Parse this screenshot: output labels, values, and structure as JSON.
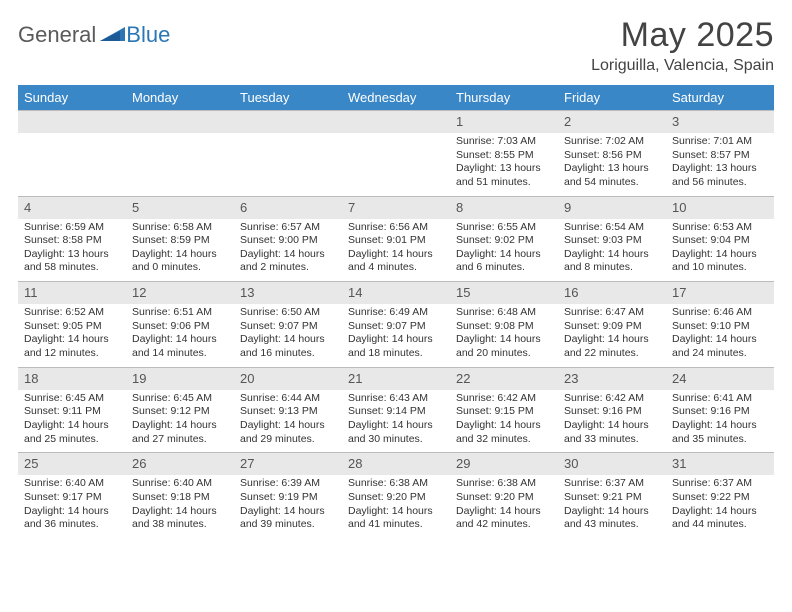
{
  "logo": {
    "general": "General",
    "blue": "Blue"
  },
  "title": "May 2025",
  "location": "Loriguilla, Valencia, Spain",
  "header_bg": "#3a87c8",
  "numrow_bg": "#e8e8e8",
  "weekdays": [
    "Sunday",
    "Monday",
    "Tuesday",
    "Wednesday",
    "Thursday",
    "Friday",
    "Saturday"
  ],
  "weeks": [
    {
      "nums": [
        "",
        "",
        "",
        "",
        "1",
        "2",
        "3"
      ],
      "cells": [
        null,
        null,
        null,
        null,
        {
          "sunrise": "Sunrise: 7:03 AM",
          "sunset": "Sunset: 8:55 PM",
          "day1": "Daylight: 13 hours",
          "day2": "and 51 minutes."
        },
        {
          "sunrise": "Sunrise: 7:02 AM",
          "sunset": "Sunset: 8:56 PM",
          "day1": "Daylight: 13 hours",
          "day2": "and 54 minutes."
        },
        {
          "sunrise": "Sunrise: 7:01 AM",
          "sunset": "Sunset: 8:57 PM",
          "day1": "Daylight: 13 hours",
          "day2": "and 56 minutes."
        }
      ]
    },
    {
      "nums": [
        "4",
        "5",
        "6",
        "7",
        "8",
        "9",
        "10"
      ],
      "cells": [
        {
          "sunrise": "Sunrise: 6:59 AM",
          "sunset": "Sunset: 8:58 PM",
          "day1": "Daylight: 13 hours",
          "day2": "and 58 minutes."
        },
        {
          "sunrise": "Sunrise: 6:58 AM",
          "sunset": "Sunset: 8:59 PM",
          "day1": "Daylight: 14 hours",
          "day2": "and 0 minutes."
        },
        {
          "sunrise": "Sunrise: 6:57 AM",
          "sunset": "Sunset: 9:00 PM",
          "day1": "Daylight: 14 hours",
          "day2": "and 2 minutes."
        },
        {
          "sunrise": "Sunrise: 6:56 AM",
          "sunset": "Sunset: 9:01 PM",
          "day1": "Daylight: 14 hours",
          "day2": "and 4 minutes."
        },
        {
          "sunrise": "Sunrise: 6:55 AM",
          "sunset": "Sunset: 9:02 PM",
          "day1": "Daylight: 14 hours",
          "day2": "and 6 minutes."
        },
        {
          "sunrise": "Sunrise: 6:54 AM",
          "sunset": "Sunset: 9:03 PM",
          "day1": "Daylight: 14 hours",
          "day2": "and 8 minutes."
        },
        {
          "sunrise": "Sunrise: 6:53 AM",
          "sunset": "Sunset: 9:04 PM",
          "day1": "Daylight: 14 hours",
          "day2": "and 10 minutes."
        }
      ]
    },
    {
      "nums": [
        "11",
        "12",
        "13",
        "14",
        "15",
        "16",
        "17"
      ],
      "cells": [
        {
          "sunrise": "Sunrise: 6:52 AM",
          "sunset": "Sunset: 9:05 PM",
          "day1": "Daylight: 14 hours",
          "day2": "and 12 minutes."
        },
        {
          "sunrise": "Sunrise: 6:51 AM",
          "sunset": "Sunset: 9:06 PM",
          "day1": "Daylight: 14 hours",
          "day2": "and 14 minutes."
        },
        {
          "sunrise": "Sunrise: 6:50 AM",
          "sunset": "Sunset: 9:07 PM",
          "day1": "Daylight: 14 hours",
          "day2": "and 16 minutes."
        },
        {
          "sunrise": "Sunrise: 6:49 AM",
          "sunset": "Sunset: 9:07 PM",
          "day1": "Daylight: 14 hours",
          "day2": "and 18 minutes."
        },
        {
          "sunrise": "Sunrise: 6:48 AM",
          "sunset": "Sunset: 9:08 PM",
          "day1": "Daylight: 14 hours",
          "day2": "and 20 minutes."
        },
        {
          "sunrise": "Sunrise: 6:47 AM",
          "sunset": "Sunset: 9:09 PM",
          "day1": "Daylight: 14 hours",
          "day2": "and 22 minutes."
        },
        {
          "sunrise": "Sunrise: 6:46 AM",
          "sunset": "Sunset: 9:10 PM",
          "day1": "Daylight: 14 hours",
          "day2": "and 24 minutes."
        }
      ]
    },
    {
      "nums": [
        "18",
        "19",
        "20",
        "21",
        "22",
        "23",
        "24"
      ],
      "cells": [
        {
          "sunrise": "Sunrise: 6:45 AM",
          "sunset": "Sunset: 9:11 PM",
          "day1": "Daylight: 14 hours",
          "day2": "and 25 minutes."
        },
        {
          "sunrise": "Sunrise: 6:45 AM",
          "sunset": "Sunset: 9:12 PM",
          "day1": "Daylight: 14 hours",
          "day2": "and 27 minutes."
        },
        {
          "sunrise": "Sunrise: 6:44 AM",
          "sunset": "Sunset: 9:13 PM",
          "day1": "Daylight: 14 hours",
          "day2": "and 29 minutes."
        },
        {
          "sunrise": "Sunrise: 6:43 AM",
          "sunset": "Sunset: 9:14 PM",
          "day1": "Daylight: 14 hours",
          "day2": "and 30 minutes."
        },
        {
          "sunrise": "Sunrise: 6:42 AM",
          "sunset": "Sunset: 9:15 PM",
          "day1": "Daylight: 14 hours",
          "day2": "and 32 minutes."
        },
        {
          "sunrise": "Sunrise: 6:42 AM",
          "sunset": "Sunset: 9:16 PM",
          "day1": "Daylight: 14 hours",
          "day2": "and 33 minutes."
        },
        {
          "sunrise": "Sunrise: 6:41 AM",
          "sunset": "Sunset: 9:16 PM",
          "day1": "Daylight: 14 hours",
          "day2": "and 35 minutes."
        }
      ]
    },
    {
      "nums": [
        "25",
        "26",
        "27",
        "28",
        "29",
        "30",
        "31"
      ],
      "cells": [
        {
          "sunrise": "Sunrise: 6:40 AM",
          "sunset": "Sunset: 9:17 PM",
          "day1": "Daylight: 14 hours",
          "day2": "and 36 minutes."
        },
        {
          "sunrise": "Sunrise: 6:40 AM",
          "sunset": "Sunset: 9:18 PM",
          "day1": "Daylight: 14 hours",
          "day2": "and 38 minutes."
        },
        {
          "sunrise": "Sunrise: 6:39 AM",
          "sunset": "Sunset: 9:19 PM",
          "day1": "Daylight: 14 hours",
          "day2": "and 39 minutes."
        },
        {
          "sunrise": "Sunrise: 6:38 AM",
          "sunset": "Sunset: 9:20 PM",
          "day1": "Daylight: 14 hours",
          "day2": "and 41 minutes."
        },
        {
          "sunrise": "Sunrise: 6:38 AM",
          "sunset": "Sunset: 9:20 PM",
          "day1": "Daylight: 14 hours",
          "day2": "and 42 minutes."
        },
        {
          "sunrise": "Sunrise: 6:37 AM",
          "sunset": "Sunset: 9:21 PM",
          "day1": "Daylight: 14 hours",
          "day2": "and 43 minutes."
        },
        {
          "sunrise": "Sunrise: 6:37 AM",
          "sunset": "Sunset: 9:22 PM",
          "day1": "Daylight: 14 hours",
          "day2": "and 44 minutes."
        }
      ]
    }
  ]
}
